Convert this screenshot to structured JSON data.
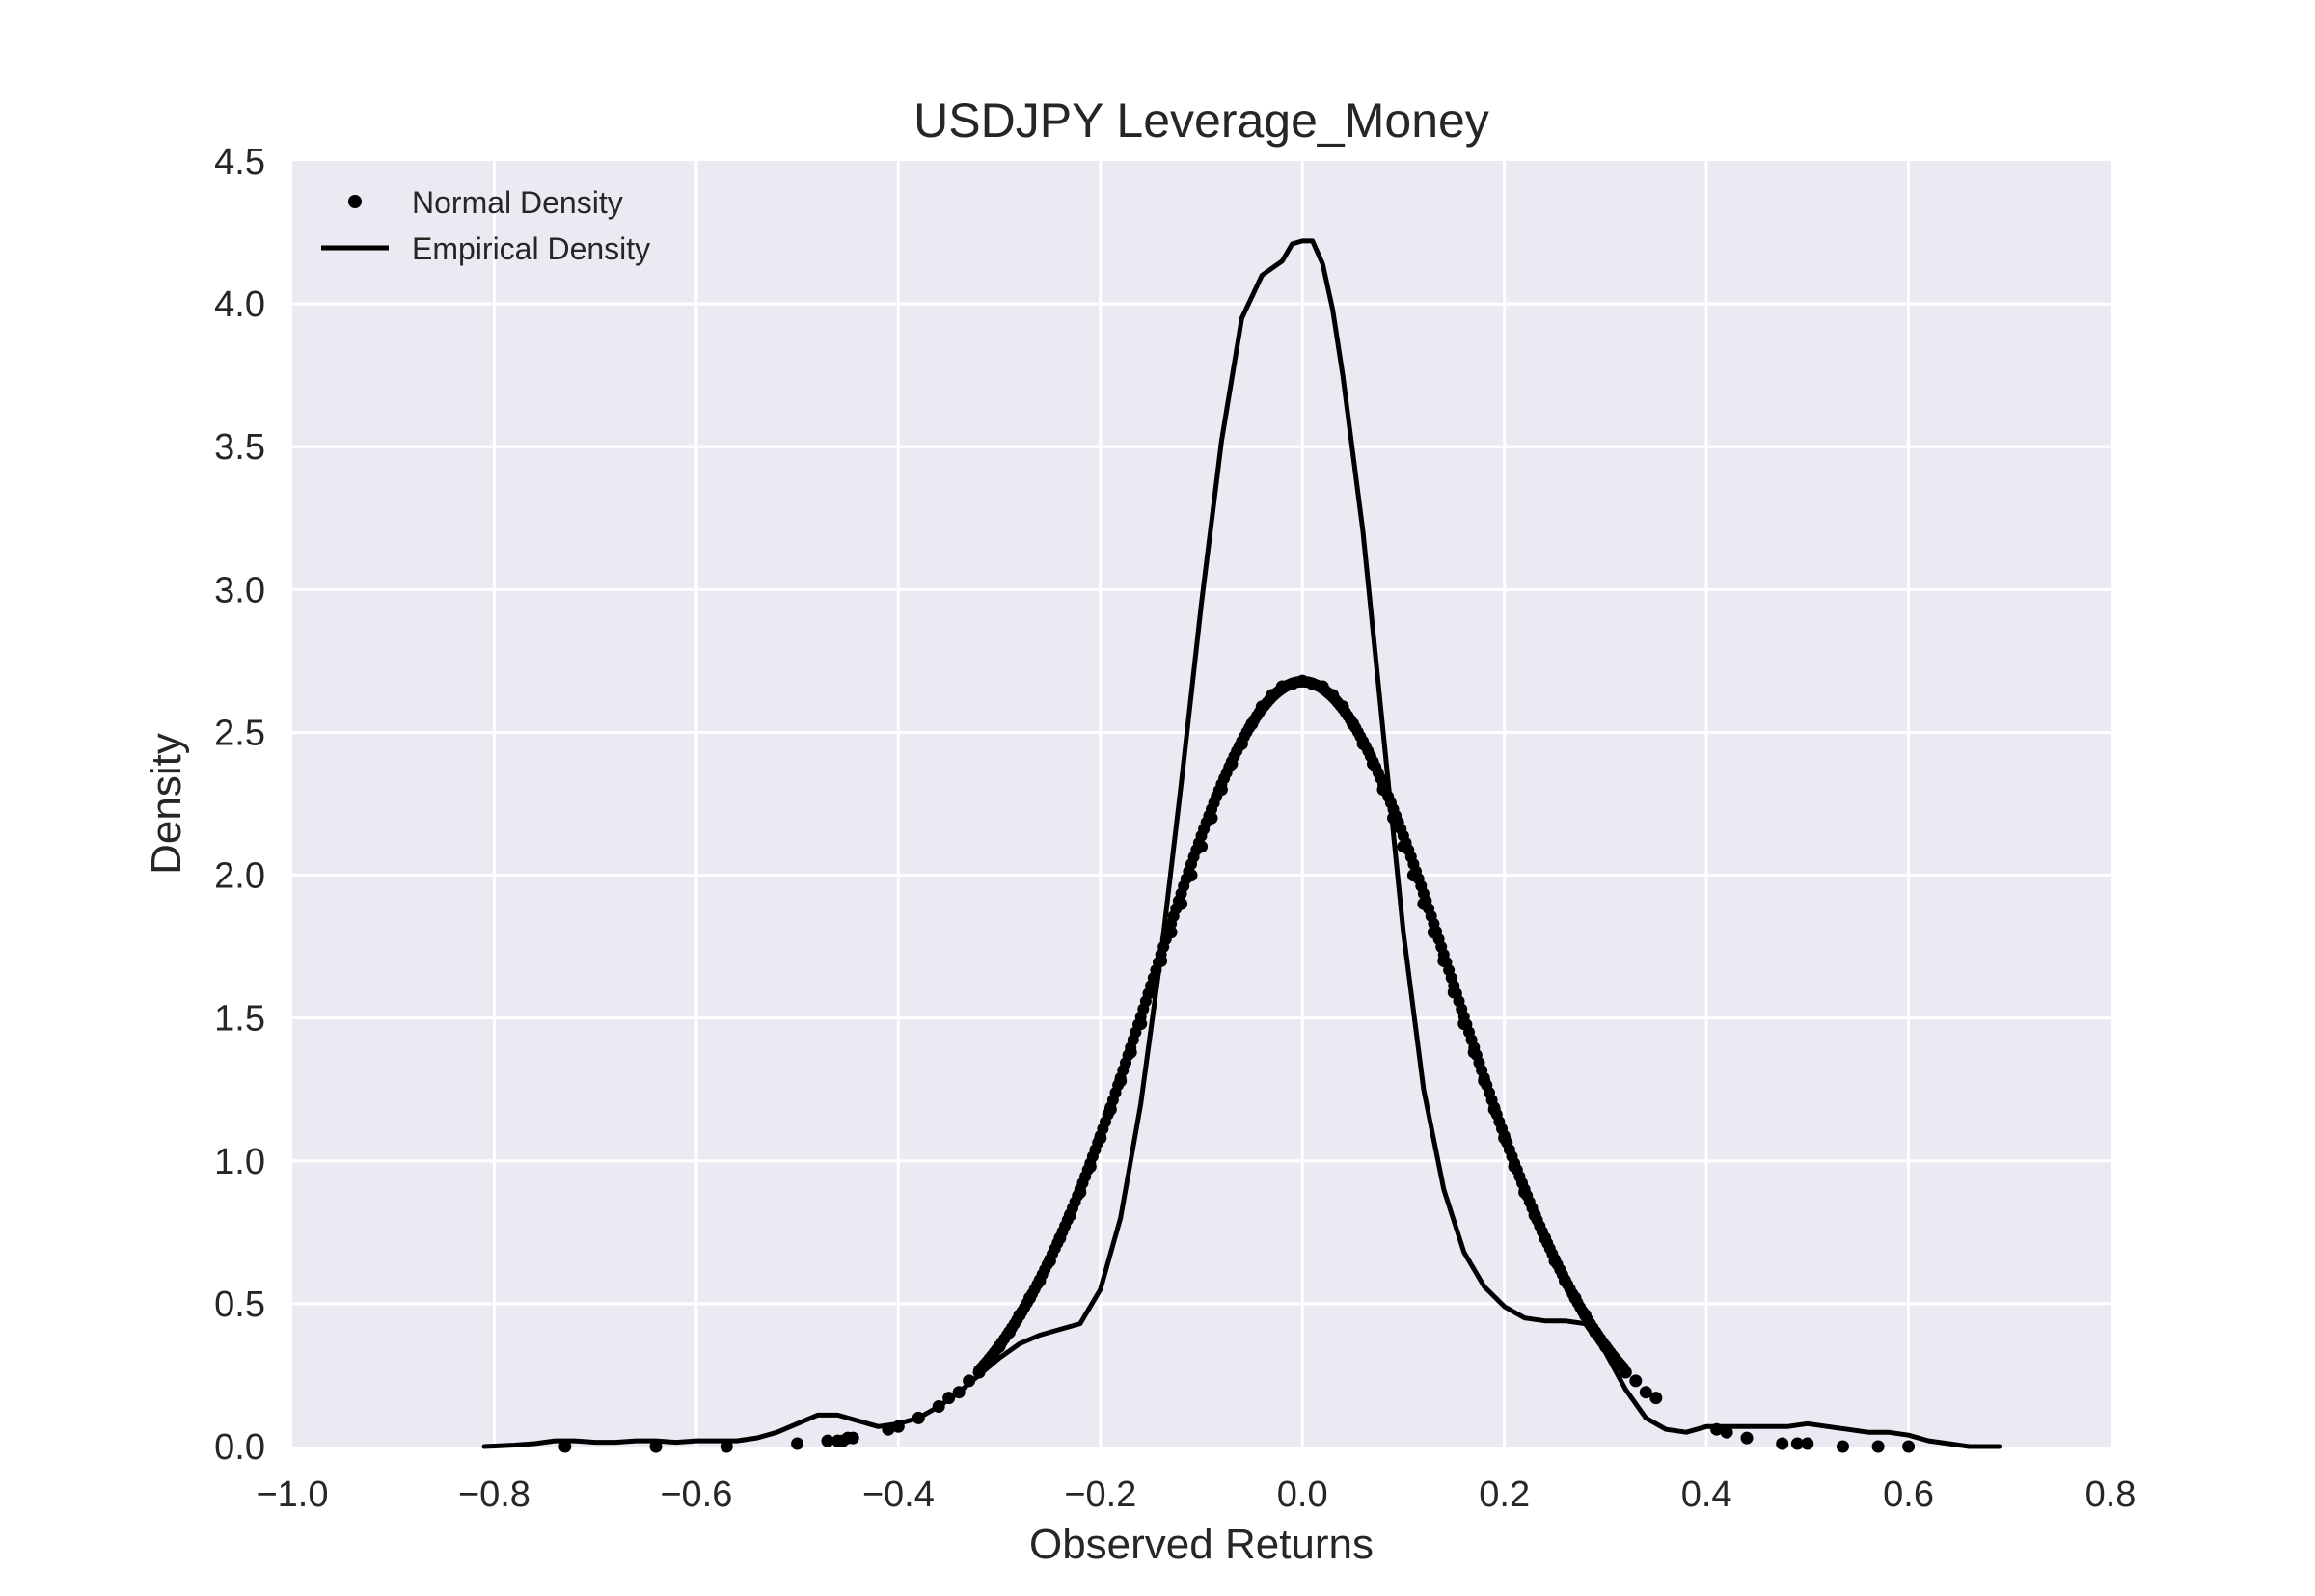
{
  "chart_data": {
    "type": "line",
    "title": "USDJPY Leverage_Money",
    "xlabel": "Observed Returns",
    "ylabel": "Density",
    "xlim": [
      -1.0,
      0.8
    ],
    "ylim": [
      0.0,
      4.5
    ],
    "xticks": [
      "−1.0",
      "−0.8",
      "−0.6",
      "−0.4",
      "−0.2",
      "0.0",
      "0.2",
      "0.4",
      "0.6",
      "0.8"
    ],
    "xtick_values": [
      -1.0,
      -0.8,
      -0.6,
      -0.4,
      -0.2,
      0.0,
      0.2,
      0.4,
      0.6,
      0.8
    ],
    "yticks": [
      "0.0",
      "0.5",
      "1.0",
      "1.5",
      "2.0",
      "2.5",
      "3.0",
      "3.5",
      "4.0",
      "4.5"
    ],
    "ytick_values": [
      0.0,
      0.5,
      1.0,
      1.5,
      2.0,
      2.5,
      3.0,
      3.5,
      4.0,
      4.5
    ],
    "grid": true,
    "legend_position": "top-left",
    "background_color": "#eaeaf2",
    "grid_color": "#ffffff",
    "series_color": "#000000",
    "series": [
      {
        "name": "Normal Density",
        "style": "points",
        "mean": 0.0,
        "std": 0.149,
        "x": [
          -0.73,
          -0.64,
          -0.57,
          -0.5,
          -0.47,
          -0.46,
          -0.455,
          -0.45,
          -0.445,
          -0.41,
          -0.4,
          -0.38,
          -0.36,
          -0.35,
          -0.34,
          -0.33,
          -0.32,
          -0.31,
          -0.3,
          -0.29,
          -0.28,
          -0.27,
          -0.26,
          -0.25,
          -0.24,
          -0.23,
          -0.22,
          -0.21,
          -0.2,
          -0.19,
          -0.18,
          -0.17,
          -0.16,
          -0.15,
          -0.14,
          -0.13,
          -0.12,
          -0.11,
          -0.1,
          -0.09,
          -0.08,
          -0.07,
          -0.06,
          -0.05,
          -0.04,
          -0.03,
          -0.02,
          -0.01,
          0.0,
          0.01,
          0.02,
          0.03,
          0.04,
          0.05,
          0.06,
          0.07,
          0.08,
          0.09,
          0.1,
          0.11,
          0.12,
          0.13,
          0.14,
          0.15,
          0.16,
          0.17,
          0.18,
          0.19,
          0.2,
          0.21,
          0.22,
          0.23,
          0.24,
          0.25,
          0.26,
          0.27,
          0.28,
          0.29,
          0.3,
          0.31,
          0.32,
          0.33,
          0.34,
          0.35,
          0.41,
          0.42,
          0.44,
          0.475,
          0.49,
          0.5,
          0.535,
          0.57,
          0.6
        ],
        "y": [
          0.0,
          0.0,
          0.0,
          0.01,
          0.02,
          0.02,
          0.02,
          0.03,
          0.03,
          0.06,
          0.07,
          0.1,
          0.14,
          0.17,
          0.19,
          0.23,
          0.26,
          0.3,
          0.35,
          0.4,
          0.46,
          0.52,
          0.58,
          0.65,
          0.73,
          0.81,
          0.89,
          0.98,
          1.08,
          1.18,
          1.28,
          1.38,
          1.48,
          1.59,
          1.7,
          1.8,
          1.9,
          2.0,
          2.1,
          2.2,
          2.3,
          2.39,
          2.46,
          2.53,
          2.59,
          2.63,
          2.66,
          2.67,
          2.68,
          2.67,
          2.66,
          2.63,
          2.59,
          2.53,
          2.46,
          2.39,
          2.3,
          2.2,
          2.1,
          2.0,
          1.9,
          1.8,
          1.7,
          1.59,
          1.48,
          1.38,
          1.28,
          1.18,
          1.08,
          0.98,
          0.89,
          0.81,
          0.73,
          0.65,
          0.58,
          0.52,
          0.46,
          0.4,
          0.35,
          0.3,
          0.26,
          0.23,
          0.19,
          0.17,
          0.06,
          0.05,
          0.03,
          0.01,
          0.01,
          0.01,
          0.0,
          0.0,
          0.0
        ]
      },
      {
        "name": "Empirical Density",
        "style": "line",
        "x": [
          -0.81,
          -0.78,
          -0.76,
          -0.74,
          -0.72,
          -0.7,
          -0.68,
          -0.66,
          -0.64,
          -0.62,
          -0.6,
          -0.58,
          -0.56,
          -0.54,
          -0.52,
          -0.5,
          -0.48,
          -0.46,
          -0.44,
          -0.42,
          -0.4,
          -0.38,
          -0.36,
          -0.34,
          -0.32,
          -0.3,
          -0.28,
          -0.26,
          -0.24,
          -0.22,
          -0.2,
          -0.18,
          -0.16,
          -0.14,
          -0.12,
          -0.1,
          -0.08,
          -0.06,
          -0.04,
          -0.02,
          -0.01,
          0.0,
          0.01,
          0.02,
          0.03,
          0.04,
          0.06,
          0.08,
          0.1,
          0.12,
          0.14,
          0.16,
          0.18,
          0.2,
          0.22,
          0.24,
          0.26,
          0.28,
          0.3,
          0.32,
          0.34,
          0.36,
          0.38,
          0.4,
          0.42,
          0.44,
          0.46,
          0.48,
          0.5,
          0.52,
          0.54,
          0.56,
          0.58,
          0.6,
          0.62,
          0.64,
          0.66,
          0.69
        ],
        "y": [
          0.0,
          0.005,
          0.01,
          0.02,
          0.02,
          0.015,
          0.015,
          0.02,
          0.02,
          0.015,
          0.02,
          0.02,
          0.02,
          0.03,
          0.05,
          0.08,
          0.11,
          0.11,
          0.09,
          0.07,
          0.08,
          0.1,
          0.14,
          0.19,
          0.25,
          0.31,
          0.36,
          0.39,
          0.41,
          0.43,
          0.55,
          0.8,
          1.2,
          1.72,
          2.32,
          2.95,
          3.52,
          3.95,
          4.1,
          4.15,
          4.21,
          4.22,
          4.22,
          4.14,
          3.98,
          3.75,
          3.2,
          2.5,
          1.8,
          1.25,
          0.9,
          0.68,
          0.56,
          0.49,
          0.45,
          0.44,
          0.44,
          0.43,
          0.33,
          0.2,
          0.1,
          0.06,
          0.05,
          0.07,
          0.07,
          0.07,
          0.07,
          0.07,
          0.08,
          0.07,
          0.06,
          0.05,
          0.05,
          0.04,
          0.02,
          0.01,
          0.0,
          0.0
        ]
      }
    ]
  }
}
